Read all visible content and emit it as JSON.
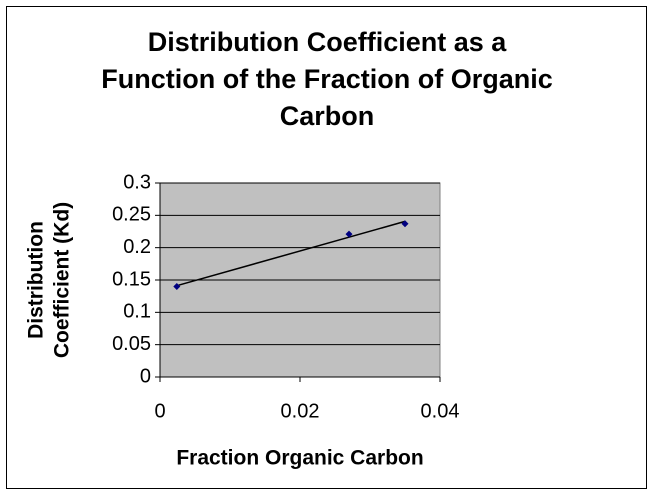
{
  "chart_data": {
    "type": "scatter",
    "title": [
      "Distribution Coefficient as a",
      "Function of the Fraction of Organic",
      "Carbon"
    ],
    "x_label": "Fraction Organic Carbon",
    "y_label": [
      "Distribution",
      "Coefficient (Kd)"
    ],
    "series": [
      {
        "color": "#000080",
        "x": [
          0.0024,
          0.027,
          0.035
        ],
        "values": [
          0.14,
          0.221,
          0.237
        ]
      }
    ],
    "trendline": "linear",
    "xlim": [
      0,
      0.04
    ],
    "xticks": [
      0,
      0.02,
      0.04
    ],
    "ylim": [
      0,
      0.3
    ],
    "yticks": [
      0,
      0.05,
      0.1,
      0.15,
      0.2,
      0.25,
      0.3
    ],
    "grid": true
  }
}
